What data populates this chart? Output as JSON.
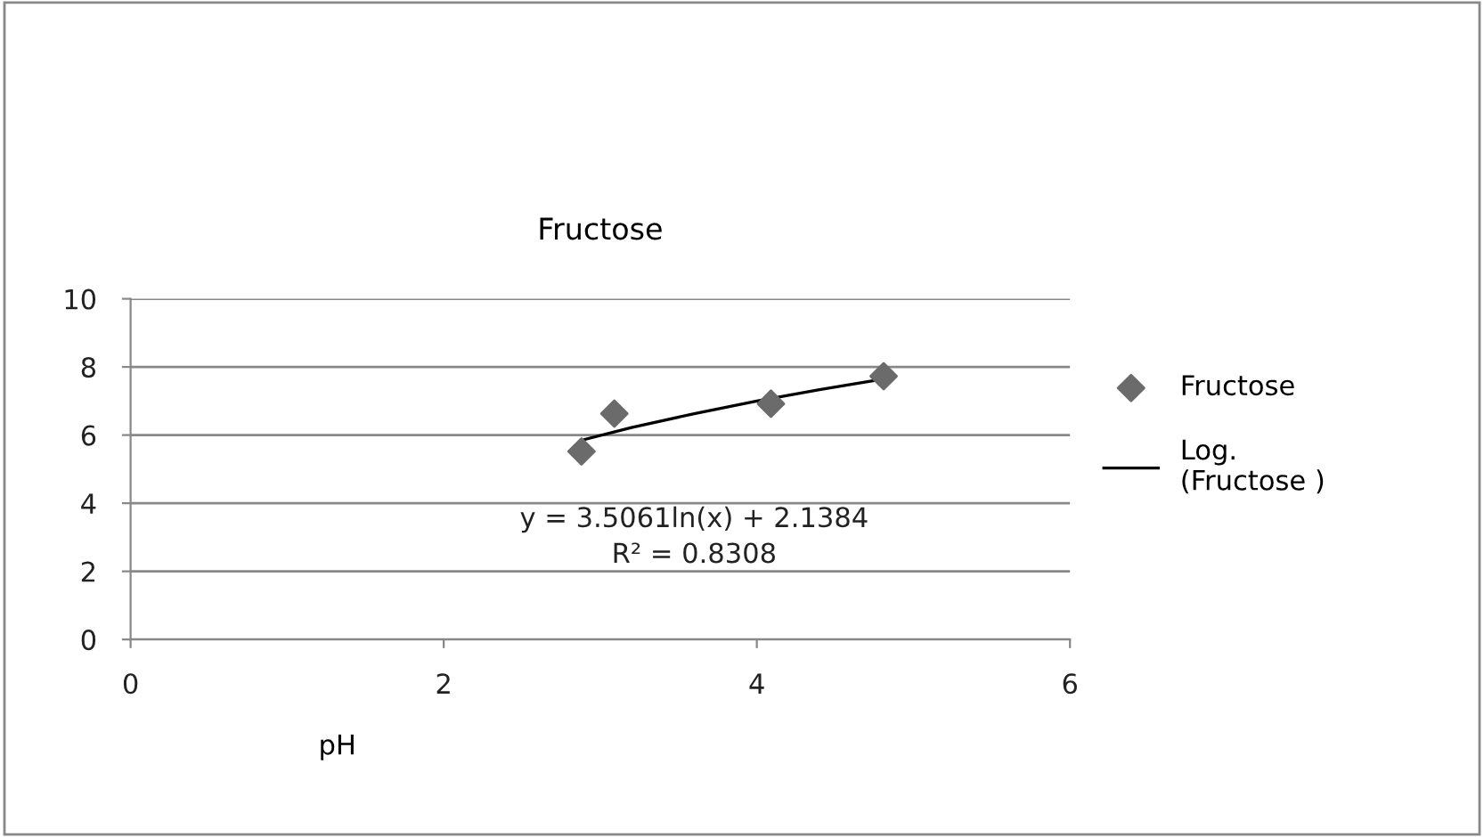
{
  "chart_data": {
    "type": "scatter",
    "title": "Fructose",
    "xlabel": "pH",
    "series": [
      {
        "name": "Fructose",
        "color": "#6b6b6b",
        "marker": "diamond",
        "x": [
          2.88,
          3.09,
          4.09,
          4.81
        ],
        "values": [
          5.52,
          6.63,
          6.92,
          7.73
        ]
      },
      {
        "name": "Log.\n(Fructose )",
        "type": "line",
        "color": "#000000",
        "marker": "none",
        "x": [
          2.9,
          3.2,
          3.6,
          4.0,
          4.4,
          4.8
        ],
        "values": [
          5.87,
          6.22,
          6.63,
          7.0,
          7.33,
          7.64
        ]
      }
    ],
    "annotations": [
      "y = 3.5061ln(x) + 2.1384",
      "R² = 0.8308"
    ],
    "xlim": [
      0,
      6
    ],
    "xticks": [
      0,
      2,
      4,
      6
    ],
    "ylim": [
      0,
      10
    ],
    "yticks": [
      0,
      2,
      4,
      6,
      8,
      10
    ],
    "grid": "y",
    "legend": "right"
  }
}
